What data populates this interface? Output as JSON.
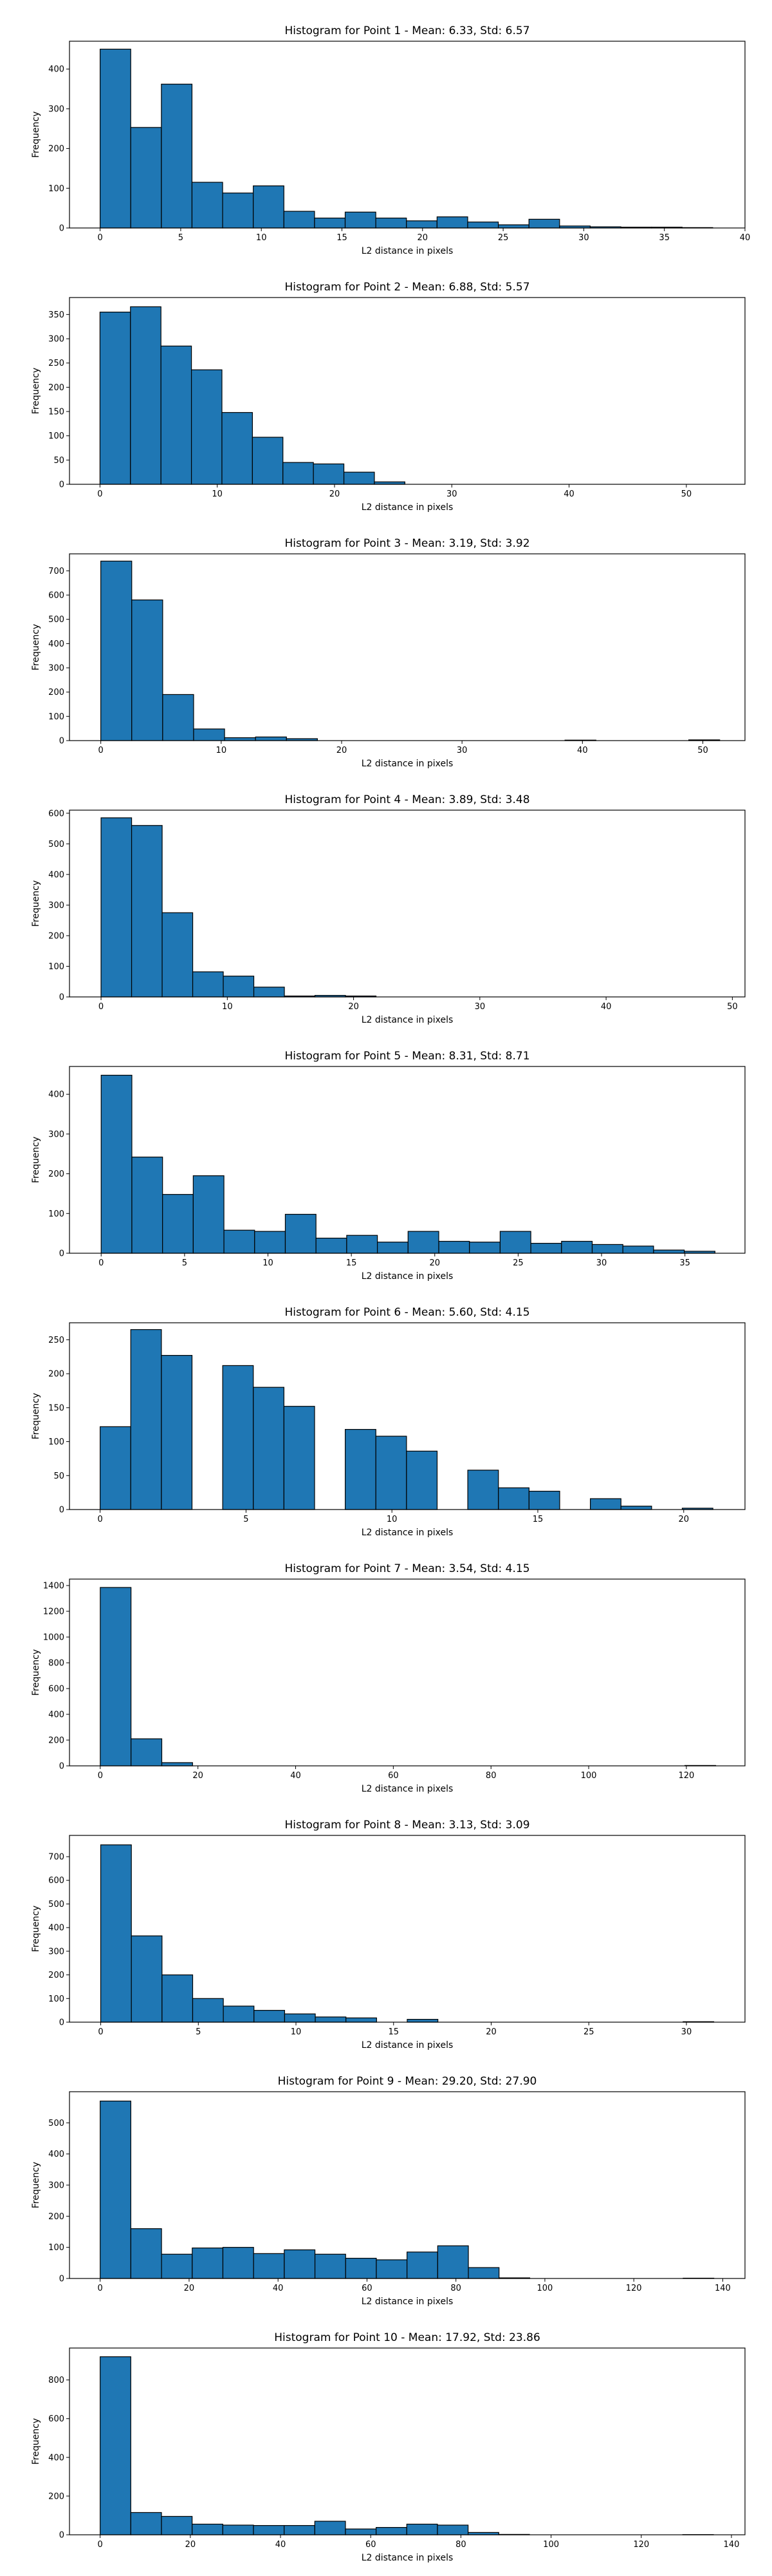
{
  "chart_data": [
    {
      "type": "bar",
      "title": "Histogram for Point 1 - Mean: 6.33, Std: 6.57",
      "xlabel": "L2 distance in pixels",
      "ylabel": "Frequency",
      "xlim": [
        -1.9,
        40
      ],
      "ylim": [
        0,
        470
      ],
      "xticks": [
        0,
        5,
        10,
        15,
        20,
        25,
        30,
        35,
        40
      ],
      "yticks": [
        0,
        100,
        200,
        300,
        400
      ],
      "bin_start": 0,
      "bin_width": 1.9,
      "values": [
        450,
        253,
        362,
        115,
        88,
        106,
        42,
        25,
        40,
        25,
        18,
        28,
        15,
        8,
        22,
        5,
        3,
        2,
        2,
        1
      ]
    },
    {
      "type": "bar",
      "title": "Histogram for Point 2 - Mean: 6.88, Std: 5.57",
      "xlabel": "L2 distance in pixels",
      "ylabel": "Frequency",
      "xlim": [
        -2.6,
        55
      ],
      "ylim": [
        0,
        385
      ],
      "xticks": [
        0,
        10,
        20,
        30,
        40,
        50
      ],
      "yticks": [
        0,
        50,
        100,
        150,
        200,
        250,
        300,
        350
      ],
      "bin_start": 0,
      "bin_width": 2.6,
      "values": [
        355,
        366,
        285,
        236,
        148,
        97,
        45,
        42,
        25,
        5,
        0,
        0,
        0,
        0,
        0,
        0,
        0,
        0,
        0,
        0
      ]
    },
    {
      "type": "bar",
      "title": "Histogram for Point 3 - Mean: 3.19, Std: 3.92",
      "xlabel": "L2 distance in pixels",
      "ylabel": "Frequency",
      "xlim": [
        -2.6,
        53.5
      ],
      "ylim": [
        0,
        770
      ],
      "xticks": [
        0,
        10,
        20,
        30,
        40,
        50
      ],
      "yticks": [
        0,
        100,
        200,
        300,
        400,
        500,
        600,
        700
      ],
      "bin_start": 0,
      "bin_width": 2.57,
      "values": [
        740,
        580,
        190,
        48,
        12,
        15,
        8,
        0,
        0,
        0,
        0,
        0,
        0,
        0,
        0,
        2,
        0,
        0,
        0,
        3
      ]
    },
    {
      "type": "bar",
      "title": "Histogram for Point 4 - Mean: 3.89, Std: 3.48",
      "xlabel": "L2 distance in pixels",
      "ylabel": "Frequency",
      "xlim": [
        -2.5,
        51
      ],
      "ylim": [
        0,
        610
      ],
      "xticks": [
        0,
        10,
        20,
        30,
        40,
        50
      ],
      "yticks": [
        0,
        100,
        200,
        300,
        400,
        500,
        600
      ],
      "bin_start": 0,
      "bin_width": 2.42,
      "values": [
        585,
        560,
        275,
        82,
        68,
        32,
        3,
        5,
        3,
        0,
        0,
        0,
        0,
        0,
        0,
        0,
        0,
        0,
        0,
        0
      ]
    },
    {
      "type": "bar",
      "title": "Histogram for Point 5 - Mean: 8.31, Std: 8.71",
      "xlabel": "L2 distance in pixels",
      "ylabel": "Frequency",
      "xlim": [
        -1.9,
        38.6
      ],
      "ylim": [
        0,
        470
      ],
      "xticks": [
        0,
        5,
        10,
        15,
        20,
        25,
        30,
        35
      ],
      "yticks": [
        0,
        100,
        200,
        300,
        400
      ],
      "bin_start": 0,
      "bin_width": 1.84,
      "values": [
        448,
        242,
        148,
        195,
        58,
        55,
        98,
        38,
        45,
        28,
        55,
        30,
        28,
        55,
        25,
        30,
        22,
        18,
        8,
        5
      ]
    },
    {
      "type": "bar",
      "title": "Histogram for Point 6 - Mean: 5.60, Std: 4.15",
      "xlabel": "L2 distance in pixels",
      "ylabel": "Frequency",
      "xlim": [
        -1.05,
        22.1
      ],
      "ylim": [
        0,
        275
      ],
      "xticks": [
        0,
        5,
        10,
        15,
        20
      ],
      "yticks": [
        0,
        50,
        100,
        150,
        200,
        250
      ],
      "bin_start": 0,
      "bin_width": 1.05,
      "values": [
        122,
        265,
        227,
        0,
        212,
        180,
        152,
        0,
        118,
        108,
        86,
        0,
        58,
        32,
        27,
        0,
        16,
        5,
        0,
        2
      ]
    },
    {
      "type": "bar",
      "title": "Histogram for Point 7 - Mean: 3.54, Std: 4.15",
      "xlabel": "L2 distance in pixels",
      "ylabel": "Frequency",
      "xlim": [
        -6.3,
        132
      ],
      "ylim": [
        0,
        1450
      ],
      "xticks": [
        0,
        20,
        40,
        60,
        80,
        100,
        120
      ],
      "yticks": [
        0,
        200,
        400,
        600,
        800,
        1000,
        1200,
        1400
      ],
      "bin_start": 0,
      "bin_width": 6.3,
      "values": [
        1385,
        210,
        25,
        0,
        0,
        0,
        0,
        0,
        0,
        0,
        0,
        0,
        0,
        0,
        0,
        0,
        0,
        0,
        0,
        3
      ]
    },
    {
      "type": "bar",
      "title": "Histogram for Point 8 - Mean: 3.13, Std: 3.09",
      "xlabel": "L2 distance in pixels",
      "ylabel": "Frequency",
      "xlim": [
        -1.6,
        33
      ],
      "ylim": [
        0,
        790
      ],
      "xticks": [
        0,
        5,
        10,
        15,
        20,
        25,
        30
      ],
      "yticks": [
        0,
        100,
        200,
        300,
        400,
        500,
        600,
        700
      ],
      "bin_start": 0,
      "bin_width": 1.57,
      "values": [
        750,
        365,
        200,
        100,
        68,
        50,
        35,
        22,
        18,
        0,
        12,
        0,
        0,
        0,
        0,
        0,
        0,
        0,
        0,
        2
      ]
    },
    {
      "type": "bar",
      "title": "Histogram for Point 9 - Mean: 29.20, Std: 27.90",
      "xlabel": "L2 distance in pixels",
      "ylabel": "Frequency",
      "xlim": [
        -6.9,
        145
      ],
      "ylim": [
        0,
        600
      ],
      "xticks": [
        0,
        20,
        40,
        60,
        80,
        100,
        120,
        140
      ],
      "yticks": [
        0,
        100,
        200,
        300,
        400,
        500
      ],
      "bin_start": 0,
      "bin_width": 6.9,
      "values": [
        570,
        160,
        78,
        98,
        100,
        80,
        92,
        78,
        65,
        60,
        85,
        105,
        35,
        2,
        0,
        0,
        0,
        0,
        0,
        1
      ]
    },
    {
      "type": "bar",
      "title": "Histogram for Point 10 - Mean: 17.92, Std: 23.86",
      "xlabel": "L2 distance in pixels",
      "ylabel": "Frequency",
      "xlim": [
        -6.8,
        143
      ],
      "ylim": [
        0,
        965
      ],
      "xticks": [
        0,
        20,
        40,
        60,
        80,
        100,
        120,
        140
      ],
      "yticks": [
        0,
        200,
        400,
        600,
        800
      ],
      "bin_start": 0,
      "bin_width": 6.8,
      "values": [
        920,
        115,
        95,
        55,
        50,
        48,
        48,
        70,
        30,
        38,
        55,
        50,
        12,
        2,
        0,
        0,
        0,
        0,
        0,
        1
      ]
    }
  ]
}
